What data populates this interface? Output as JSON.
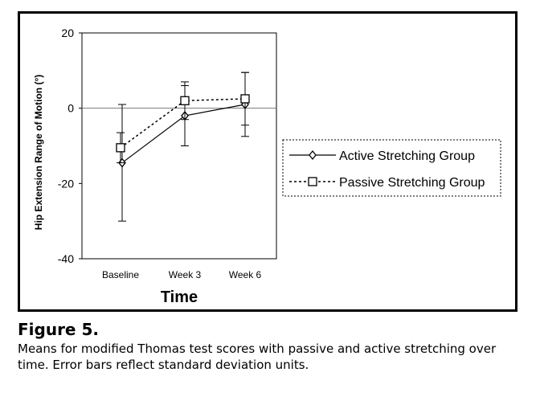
{
  "chart_data": {
    "type": "line",
    "categories": [
      "Baseline",
      "Week 3",
      "Week 6"
    ],
    "xlabel": "Time",
    "ylabel": "Hip Extension Range of Motion (°)",
    "ylim": [
      -40,
      20
    ],
    "yticks": [
      -40,
      -20,
      0,
      20
    ],
    "zero_line": true,
    "series": [
      {
        "name": "Active Stretching Group",
        "marker": "diamond",
        "line": "solid",
        "values": [
          -14.5,
          -2.0,
          1.0
        ],
        "error_sd": [
          15.5,
          8.0,
          8.5
        ]
      },
      {
        "name": "Passive Stretching Group",
        "marker": "square",
        "line": "dotted",
        "values": [
          -10.5,
          2.0,
          2.5
        ],
        "error_sd": [
          4.0,
          5.0,
          7.0
        ]
      }
    ],
    "legend_position": "right"
  },
  "caption": {
    "title": "Figure 5.",
    "text": "Means for modified Thomas test scores with passive and active stretching over time. Error bars reflect standard deviation units."
  }
}
